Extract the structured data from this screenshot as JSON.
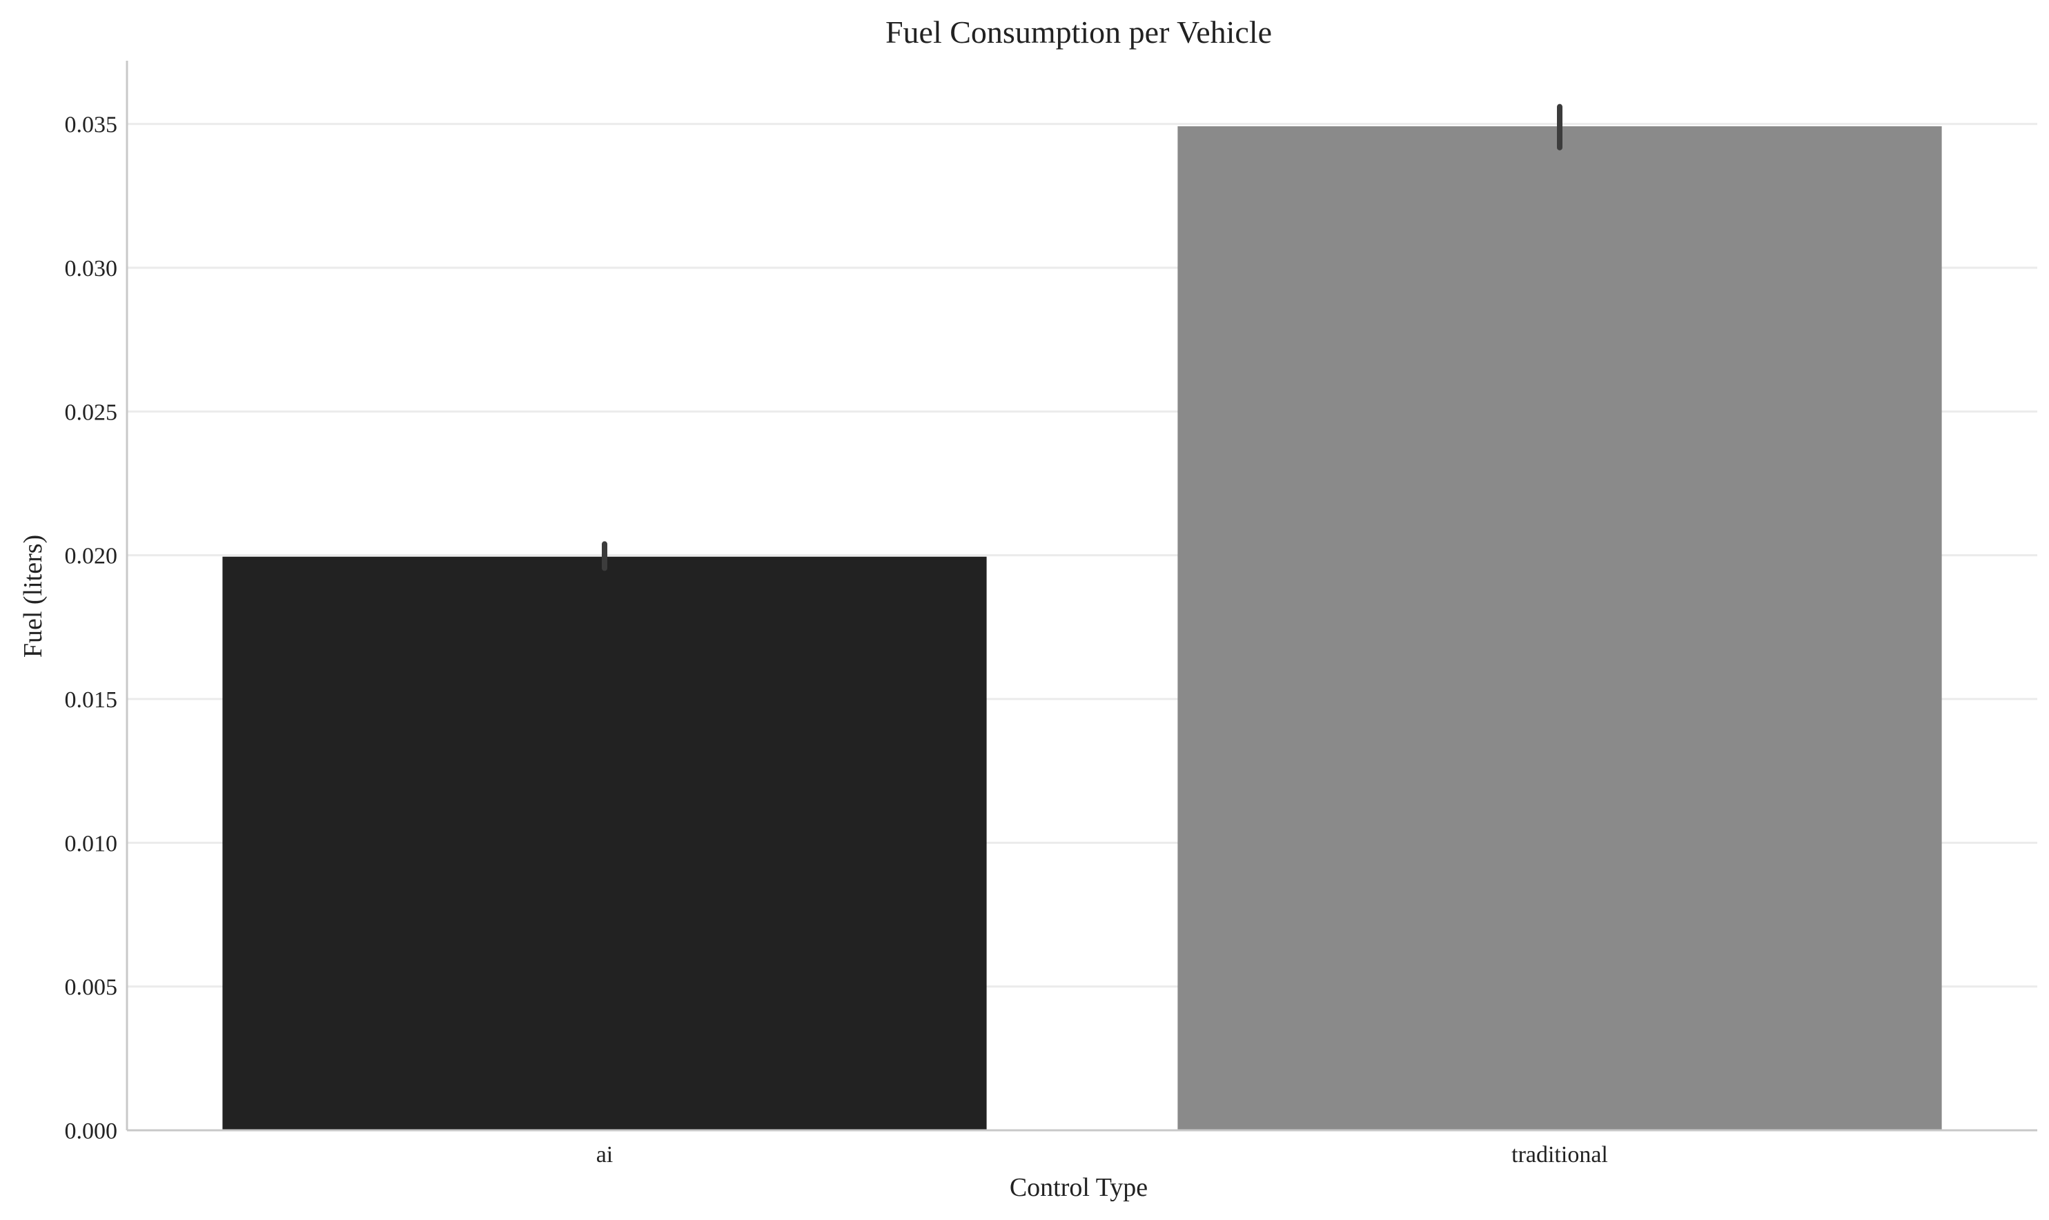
{
  "chart_data": {
    "type": "bar",
    "title": "Fuel Consumption per Vehicle",
    "xlabel": "Control Type",
    "ylabel": "Fuel (liters)",
    "categories": [
      "ai",
      "traditional"
    ],
    "values": [
      0.01995,
      0.03492
    ],
    "error_low": [
      0.01955,
      0.03418
    ],
    "error_high": [
      0.02039,
      0.0356
    ],
    "colors": [
      "#222222",
      "#8a8a8a"
    ],
    "ylim": [
      0,
      0.0372
    ],
    "yticks": [
      0.0,
      0.005,
      0.01,
      0.015,
      0.02,
      0.025,
      0.03,
      0.035
    ],
    "ytick_labels": [
      "0.000",
      "0.005",
      "0.010",
      "0.015",
      "0.020",
      "0.025",
      "0.030",
      "0.035"
    ],
    "grid": "horizontal",
    "legend": "none"
  }
}
